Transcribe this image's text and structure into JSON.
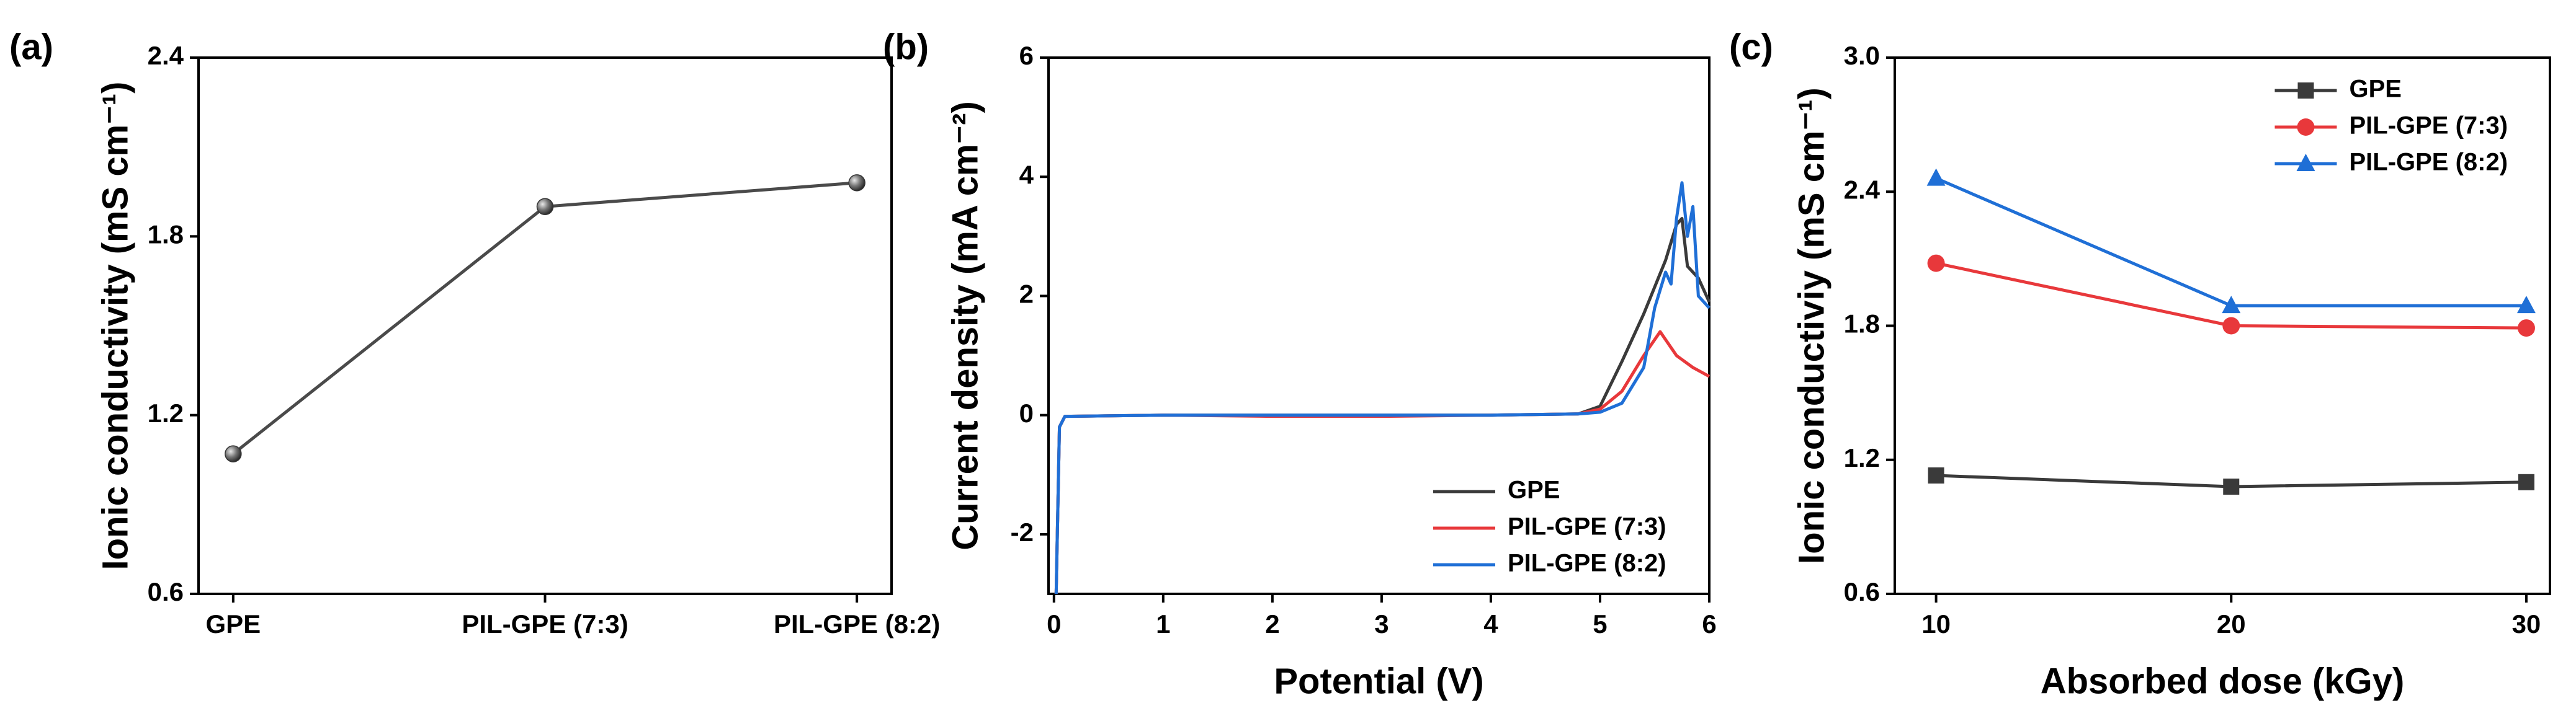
{
  "chart_data": [
    {
      "type": "line",
      "panel_label": "(a)",
      "ylabel": "Ionic conductivity (mS cm⁻¹)",
      "categories": [
        "GPE",
        "PIL-GPE (7:3)",
        "PIL-GPE (8:2)"
      ],
      "values": [
        1.07,
        1.9,
        1.98
      ],
      "color": "#4a4a4a",
      "marker": "sphere",
      "ylim": [
        0.6,
        2.4
      ],
      "yticks": [
        0.6,
        1.2,
        1.8,
        2.4
      ]
    },
    {
      "type": "line",
      "panel_label": "(b)",
      "xlabel": "Potential (V)",
      "ylabel": "Current density (mA cm⁻²)",
      "xlim": [
        -0.05,
        6
      ],
      "xticks": [
        0,
        1,
        2,
        3,
        4,
        5,
        6
      ],
      "ylim": [
        -3,
        6
      ],
      "yticks": [
        -2,
        0,
        2,
        4,
        6
      ],
      "legend": "lower right",
      "series": [
        {
          "name": "GPE",
          "color": "#3a3a3a",
          "x": [
            0.02,
            0.05,
            0.1,
            1,
            2,
            3,
            4,
            4.8,
            5.0,
            5.2,
            5.4,
            5.6,
            5.7,
            5.75,
            5.8,
            5.9,
            6.0
          ],
          "values": [
            -3,
            -0.2,
            -0.02,
            0,
            0,
            0,
            0,
            0.02,
            0.15,
            0.9,
            1.7,
            2.6,
            3.2,
            3.3,
            2.5,
            2.3,
            1.9
          ]
        },
        {
          "name": "PIL-GPE (7:3)",
          "color": "#e8383b",
          "x": [
            0.02,
            0.05,
            0.1,
            1,
            2,
            3,
            4,
            4.8,
            5.0,
            5.2,
            5.4,
            5.55,
            5.7,
            5.85,
            6.0
          ],
          "values": [
            -3,
            -0.2,
            -0.02,
            0,
            -0.02,
            -0.02,
            0,
            0.02,
            0.1,
            0.4,
            1.0,
            1.4,
            1.0,
            0.8,
            0.65
          ]
        },
        {
          "name": "PIL-GPE (8:2)",
          "color": "#1f6fd6",
          "x": [
            0.02,
            0.05,
            0.1,
            1,
            2,
            3,
            4,
            4.8,
            5.0,
            5.2,
            5.4,
            5.5,
            5.6,
            5.65,
            5.7,
            5.75,
            5.8,
            5.85,
            5.9,
            6.0
          ],
          "values": [
            -3,
            -0.2,
            -0.02,
            0,
            0,
            0,
            0,
            0.02,
            0.05,
            0.2,
            0.8,
            1.8,
            2.4,
            2.2,
            3.3,
            3.9,
            3.0,
            3.5,
            2.0,
            1.8
          ]
        }
      ]
    },
    {
      "type": "line",
      "panel_label": "(c)",
      "xlabel": "Absorbed dose (kGy)",
      "ylabel": "Ionic conductiviy (mS cm⁻¹)",
      "xlim": [
        8.6,
        30.8
      ],
      "xticks": [
        10,
        20,
        30
      ],
      "ylim": [
        0.6,
        3.0
      ],
      "yticks": [
        0.6,
        1.2,
        1.8,
        2.4,
        {
          "value": 3.0,
          "label": "3.0"
        }
      ],
      "legend": "upper center",
      "series": [
        {
          "name": "GPE",
          "color": "#3a3a3a",
          "marker": "square",
          "x": [
            10,
            20,
            30
          ],
          "values": [
            1.13,
            1.08,
            1.1
          ]
        },
        {
          "name": "PIL-GPE (7:3)",
          "color": "#e8383b",
          "marker": "circle",
          "x": [
            10,
            20,
            30
          ],
          "values": [
            2.08,
            1.8,
            1.79
          ]
        },
        {
          "name": "PIL-GPE (8:2)",
          "color": "#1f6fd6",
          "marker": "triangle",
          "x": [
            10,
            20,
            30
          ],
          "values": [
            2.46,
            1.89,
            1.89
          ]
        }
      ]
    }
  ]
}
